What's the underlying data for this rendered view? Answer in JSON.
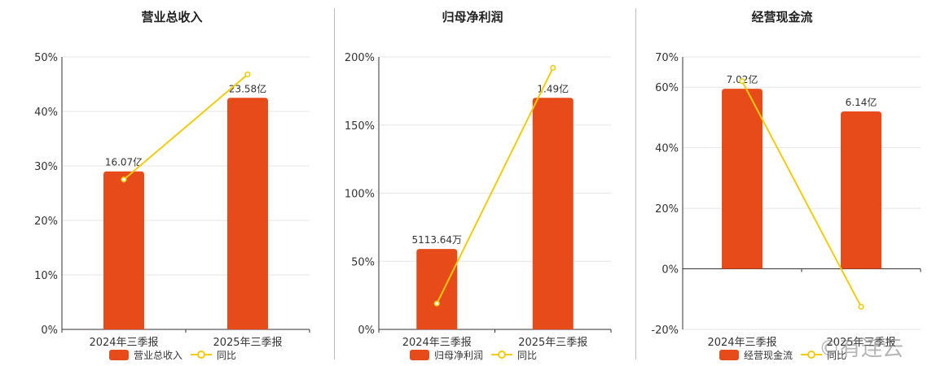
{
  "colors": {
    "bar": "#E84B1A",
    "line": "#F2CC0C",
    "grid": "#e6e6e6",
    "axis": "#333333",
    "text": "#333333"
  },
  "watermark": "©有连云",
  "chart_data": [
    {
      "type": "bar",
      "title": "营业总收入",
      "categories": [
        "2024年三季报",
        "2025年三季报"
      ],
      "series": [
        {
          "name": "营业总收入",
          "type": "bar",
          "values": [
            29.0,
            42.5
          ],
          "labels": [
            "16.07亿",
            "23.58亿"
          ]
        },
        {
          "name": "同比",
          "type": "line",
          "values": [
            27.5,
            46.8
          ]
        }
      ],
      "yticks": [
        "0%",
        "10%",
        "20%",
        "30%",
        "40%",
        "50%"
      ],
      "ylim": [
        0,
        50
      ],
      "grid": true,
      "legend": "bottom"
    },
    {
      "type": "bar",
      "title": "归母净利润",
      "categories": [
        "2024年三季报",
        "2025年三季报"
      ],
      "series": [
        {
          "name": "归母净利润",
          "type": "bar",
          "values": [
            59,
            170
          ],
          "labels": [
            "5113.64万",
            "1.49亿"
          ]
        },
        {
          "name": "同比",
          "type": "line",
          "values": [
            19,
            192
          ]
        }
      ],
      "yticks": [
        "0%",
        "50%",
        "100%",
        "150%",
        "200%"
      ],
      "ylim": [
        0,
        200
      ],
      "grid": true,
      "legend": "bottom"
    },
    {
      "type": "bar",
      "title": "经营现金流",
      "categories": [
        "2024年三季报",
        "2025年三季报"
      ],
      "series": [
        {
          "name": "经营现金流",
          "type": "bar",
          "values": [
            59.5,
            52.0
          ],
          "labels": [
            "7.02亿",
            "6.14亿"
          ]
        },
        {
          "name": "同比",
          "type": "line",
          "values": [
            62,
            -12.5
          ]
        }
      ],
      "yticks": [
        "-20%",
        "0%",
        "20%",
        "40%",
        "60%",
        "70%"
      ],
      "ylim": [
        -20,
        70
      ],
      "grid": true,
      "legend": "bottom"
    }
  ]
}
